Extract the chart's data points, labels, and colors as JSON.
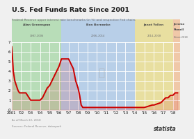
{
  "title": "U.S. Fed Funds Rate Since 2001",
  "subtitle": "Federal Reserve upper interest rate benchmarks (in %) and respective Fed chairs",
  "xlim": [
    2001,
    2018.75
  ],
  "ylim": [
    0,
    7
  ],
  "yticks": [
    0,
    1,
    2,
    3,
    4,
    5,
    6,
    7
  ],
  "xtick_labels": [
    "2001",
    "'02",
    "'03",
    "'04",
    "'05",
    "'06",
    "'07",
    "'08",
    "'09",
    "'10",
    "'11",
    "'12",
    "'13",
    "'14",
    "'15",
    "'16",
    "'17",
    "'18"
  ],
  "xtick_positions": [
    2001,
    2002,
    2003,
    2004,
    2005,
    2006,
    2007,
    2008,
    2009,
    2010,
    2011,
    2012,
    2013,
    2014,
    2015,
    2016,
    2017,
    2018
  ],
  "line_color": "#cc0000",
  "line_width": 1.4,
  "background_color": "#f0f0f0",
  "plot_bg_color": "#ffffff",
  "chairs": [
    {
      "name": "Alan Greenspan",
      "sub": "1987–2006",
      "start": 2001,
      "end": 2006.25,
      "color": "#b8ddb8"
    },
    {
      "name": "Ben Bernanke",
      "sub": "2006–2014",
      "start": 2006.25,
      "end": 2014.0,
      "color": "#b8cfe8"
    },
    {
      "name": "Janet Yellen",
      "sub": "2014–2018",
      "start": 2014.0,
      "end": 2018.0,
      "color": "#e8dfa0"
    },
    {
      "name": "Jerome\nPowell",
      "sub": "Since 2018",
      "start": 2018.0,
      "end": 2018.75,
      "color": "#f0c8a8"
    }
  ],
  "fed_rate_data": {
    "years": [
      2001.0,
      2001.08,
      2001.17,
      2001.33,
      2001.5,
      2001.67,
      2001.83,
      2002.0,
      2002.5,
      2003.0,
      2003.5,
      2004.0,
      2004.25,
      2004.5,
      2004.75,
      2005.0,
      2005.25,
      2005.5,
      2005.75,
      2006.0,
      2006.25,
      2006.5,
      2007.0,
      2007.25,
      2007.5,
      2007.75,
      2008.0,
      2008.17,
      2008.33,
      2008.5,
      2008.67,
      2008.83,
      2009.0,
      2009.5,
      2010.0,
      2010.5,
      2011.0,
      2011.5,
      2012.0,
      2012.5,
      2013.0,
      2013.5,
      2014.0,
      2014.5,
      2015.0,
      2015.83,
      2016.0,
      2016.75,
      2017.0,
      2017.25,
      2017.5,
      2017.75,
      2018.0,
      2018.25,
      2018.5
    ],
    "values": [
      6.5,
      5.5,
      4.0,
      3.0,
      2.5,
      2.0,
      1.75,
      1.75,
      1.75,
      1.0,
      1.0,
      1.0,
      1.25,
      1.75,
      2.25,
      2.5,
      3.0,
      3.5,
      4.0,
      4.5,
      5.25,
      5.25,
      5.25,
      4.75,
      4.25,
      3.0,
      2.25,
      1.5,
      0.5,
      0.25,
      0.25,
      0.25,
      0.25,
      0.25,
      0.25,
      0.25,
      0.25,
      0.25,
      0.25,
      0.25,
      0.25,
      0.25,
      0.25,
      0.25,
      0.25,
      0.5,
      0.5,
      0.75,
      1.0,
      1.25,
      1.25,
      1.5,
      1.5,
      1.75,
      1.75
    ]
  },
  "footer_note": "As of March 22, 2018",
  "source_note": "Sources: Federal Reserve, dataspark"
}
